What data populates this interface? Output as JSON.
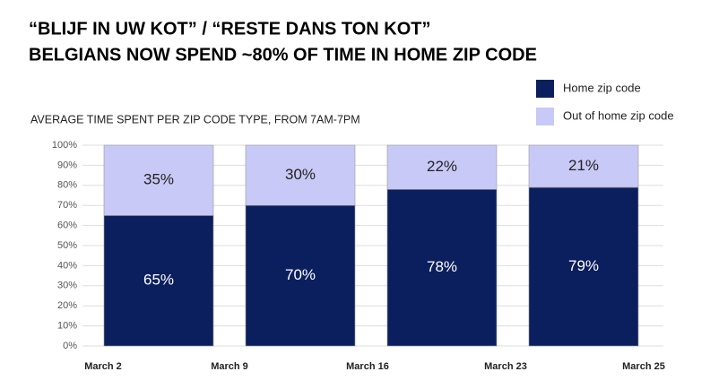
{
  "chart_data": {
    "type": "stacked_bar",
    "title_lines": [
      "“BLIJF IN UW KOT” / “RESTE DANS TON KOT”",
      "BELGIANS NOW SPEND ~80% OF TIME IN HOME ZIP CODE"
    ],
    "subtitle": "AVERAGE TIME SPENT PER ZIP CODE TYPE, FROM 7AM-7PM",
    "x_labels": [
      "March 2",
      "March 9",
      "March 16",
      "March 23",
      "March 25"
    ],
    "series": [
      {
        "name": "Home zip code",
        "color": "#0b1f5e",
        "values": [
          65,
          70,
          78,
          79
        ],
        "value_labels": [
          "65%",
          "70%",
          "78%",
          "79%"
        ]
      },
      {
        "name": "Out of home zip code",
        "color": "#c9c9f7",
        "values": [
          35,
          30,
          22,
          21
        ],
        "value_labels": [
          "35%",
          "30%",
          "22%",
          "21%"
        ]
      }
    ],
    "ylim": [
      0,
      100
    ],
    "yticks": [
      {
        "value": 0,
        "label": "0%"
      },
      {
        "value": 10,
        "label": "10%"
      },
      {
        "value": 20,
        "label": "20%"
      },
      {
        "value": 30,
        "label": "30%"
      },
      {
        "value": 40,
        "label": "40%"
      },
      {
        "value": 50,
        "label": "50%"
      },
      {
        "value": 60,
        "label": "60%"
      },
      {
        "value": 70,
        "label": "70%"
      },
      {
        "value": 80,
        "label": "80%"
      },
      {
        "value": 90,
        "label": "90%"
      },
      {
        "value": 100,
        "label": "100%"
      }
    ],
    "grid": true
  }
}
